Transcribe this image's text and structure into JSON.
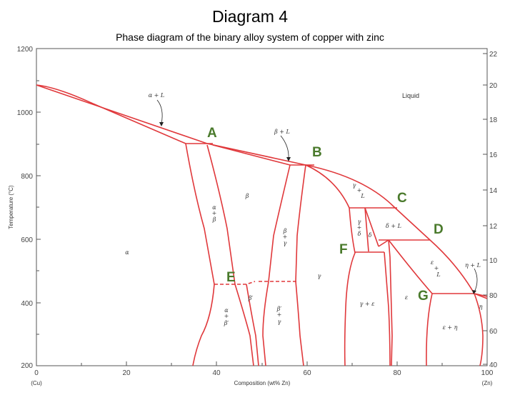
{
  "title": "Diagram 4",
  "subtitle": "Phase diagram of the binary alloy system of copper with zinc",
  "axes": {
    "x_label": "Composition (wt% Zn)",
    "x_ticks": [
      "0",
      "20",
      "40",
      "60",
      "80",
      "100"
    ],
    "x_left_end": "(Cu)",
    "x_right_end": "(Zn)",
    "y_label": "Temperature (°C)",
    "y_ticks": [
      "1200",
      "1000",
      "800",
      "600",
      "400",
      "200"
    ],
    "y_right_ticks": [
      "22",
      "20",
      "18",
      "16",
      "14",
      "12",
      "10",
      "80",
      "60",
      "40"
    ]
  },
  "regions": {
    "liquid": "Liquid",
    "alpha": "α",
    "alpha_L": "α + L",
    "beta_L": "β + L",
    "beta": "β",
    "alpha_beta": [
      "α",
      "+",
      "β"
    ],
    "beta_gamma": [
      "β",
      "+",
      "γ"
    ],
    "gamma": "γ",
    "gamma_L": [
      "γ",
      "+",
      "L"
    ],
    "gamma_delta": [
      "γ",
      "+",
      "δ"
    ],
    "delta": "δ",
    "delta_L": "δ + L",
    "eps_L": [
      "ε",
      "+",
      "L"
    ],
    "eta_L": "η + L",
    "eta": "η",
    "eps": "ε",
    "gamma_eps": "γ + ε",
    "eps_eta": "ε + η",
    "beta_prime": "β′",
    "alpha_betaprime": [
      "α",
      "+",
      "β′"
    ],
    "betaprime_gamma": [
      "β′",
      "+",
      "γ"
    ]
  },
  "markers": [
    "A",
    "B",
    "C",
    "D",
    "E",
    "F",
    "G"
  ],
  "colors": {
    "curves": "#e0383b",
    "markers": "#4a7a2c"
  }
}
